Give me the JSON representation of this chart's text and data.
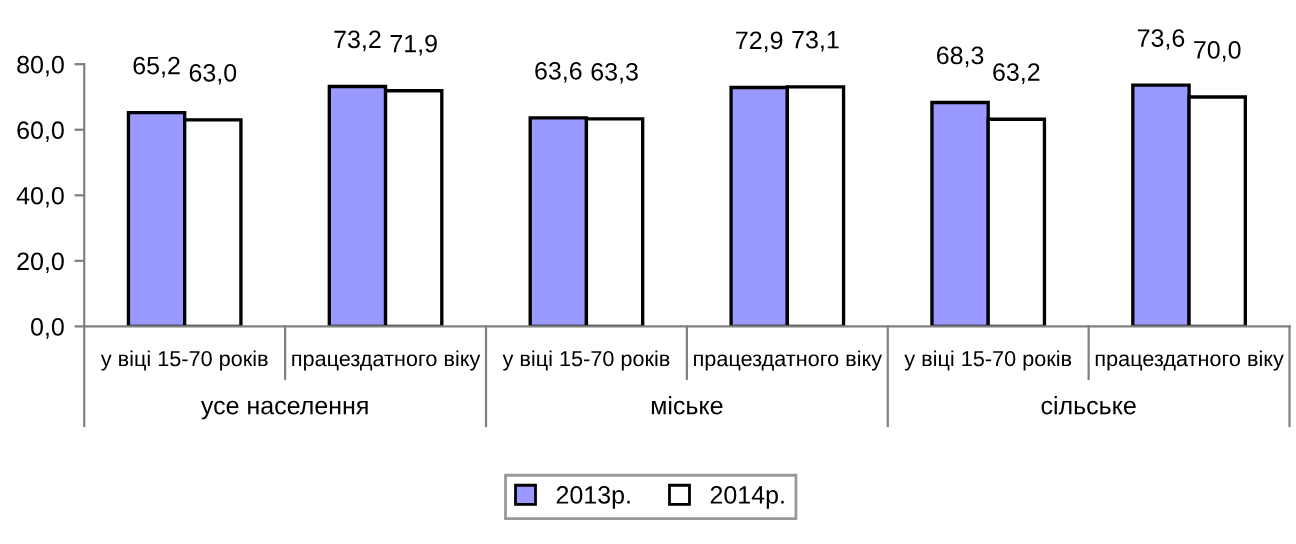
{
  "chart_data": {
    "type": "bar",
    "categories": [
      "у віці 15-70 років",
      "працездатного віку",
      "у віці 15-70 років",
      "працездатного віку",
      "у віці 15-70 років",
      "працездатного віку"
    ],
    "series": [
      {
        "name": "2013р.",
        "color": "#9999ff",
        "values": [
          65.2,
          73.2,
          63.6,
          72.9,
          68.3,
          73.6
        ],
        "value_labels": [
          "65,2",
          "73,2",
          "63,6",
          "72,9",
          "68,3",
          "73,6"
        ]
      },
      {
        "name": "2014р.",
        "color": "#ffffff",
        "values": [
          63.0,
          71.9,
          63.3,
          73.1,
          63.2,
          70.0
        ],
        "value_labels": [
          "63,0",
          "71,9",
          "63,3",
          "73,1",
          "63,2",
          "70,0"
        ]
      }
    ],
    "annotations": [
      "усе населення",
      "міське",
      "сільське"
    ],
    "ylim": [
      0,
      80
    ],
    "yticks": [
      {
        "value": 0,
        "label": "0,0"
      },
      {
        "value": 20,
        "label": "20,0"
      },
      {
        "value": 40,
        "label": "40,0"
      },
      {
        "value": 60,
        "label": "60,0"
      },
      {
        "value": 80,
        "label": "80,0"
      }
    ],
    "grid": false,
    "legend": "bottom"
  }
}
